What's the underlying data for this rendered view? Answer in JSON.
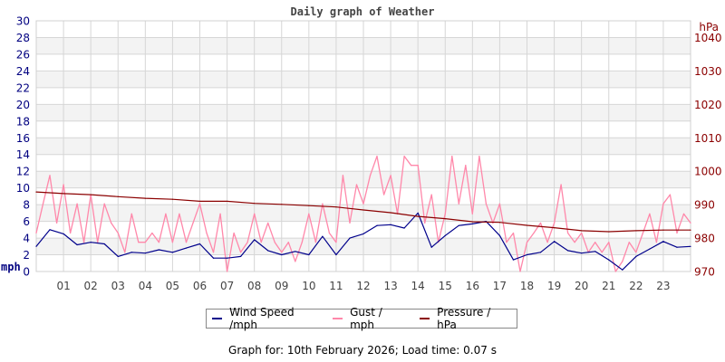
{
  "chart_data": {
    "type": "line",
    "title": "Daily graph of Weather",
    "xlabel": "",
    "ylabel": "mph",
    "y2label": "hPa",
    "xlim": [
      0,
      24
    ],
    "ylim": [
      0,
      30
    ],
    "y2lim": [
      970,
      1045
    ],
    "x_tick_labels": [
      "01",
      "02",
      "03",
      "04",
      "05",
      "06",
      "07",
      "08",
      "09",
      "10",
      "11",
      "12",
      "13",
      "14",
      "15",
      "16",
      "17",
      "18",
      "19",
      "20",
      "21",
      "22",
      "23"
    ],
    "y_tick_labels": [
      "0",
      "2",
      "4",
      "6",
      "8",
      "10",
      "12",
      "14",
      "16",
      "18",
      "20",
      "22",
      "24",
      "26",
      "28",
      "30"
    ],
    "y2_tick_labels": [
      "970",
      "980",
      "990",
      "1000",
      "1010",
      "1020",
      "1030",
      "1040"
    ],
    "grid": true,
    "legend_placement": "bottom",
    "series": [
      {
        "name": "Wind Speed /mph",
        "axis": "left",
        "color": "#00008b",
        "x_step_hours": 0.5,
        "values": [
          3.0,
          5.0,
          4.5,
          3.2,
          3.5,
          3.3,
          1.8,
          2.3,
          2.2,
          2.6,
          2.3,
          2.8,
          3.3,
          1.6,
          1.6,
          1.8,
          3.8,
          2.5,
          2.0,
          2.4,
          2.0,
          4.2,
          2.0,
          4.0,
          4.5,
          5.5,
          5.6,
          5.2,
          7.0,
          2.9,
          4.3,
          5.5,
          5.7,
          6.0,
          4.3,
          1.4,
          2.0,
          2.3,
          3.6,
          2.5,
          2.2,
          2.4,
          1.4,
          0.2,
          1.8,
          2.7,
          3.6,
          2.9,
          3.0
        ]
      },
      {
        "name": "Gust / mph",
        "axis": "left",
        "color": "#ff88aa",
        "x_step_hours": 0.25,
        "values": [
          4.6,
          8.1,
          11.5,
          5.8,
          10.4,
          4.6,
          8.1,
          3.5,
          9.2,
          3.5,
          8.1,
          5.8,
          4.6,
          2.3,
          6.9,
          3.5,
          3.5,
          4.6,
          3.5,
          6.9,
          3.5,
          6.9,
          3.5,
          5.8,
          8.1,
          4.6,
          2.3,
          6.9,
          0.0,
          4.6,
          2.3,
          3.5,
          6.9,
          3.5,
          5.8,
          3.5,
          2.3,
          3.5,
          1.2,
          3.5,
          6.9,
          3.5,
          8.1,
          4.6,
          3.5,
          11.5,
          5.8,
          10.4,
          8.1,
          11.5,
          13.8,
          9.2,
          11.5,
          6.9,
          13.8,
          12.7,
          12.7,
          5.8,
          9.2,
          3.5,
          6.9,
          13.8,
          8.1,
          12.7,
          6.9,
          13.8,
          8.1,
          5.8,
          8.1,
          3.5,
          4.6,
          0.0,
          3.5,
          4.6,
          5.8,
          3.5,
          5.8,
          10.4,
          4.6,
          3.5,
          4.6,
          2.3,
          3.5,
          2.3,
          3.5,
          0.0,
          1.2,
          3.5,
          2.3,
          4.6,
          6.9,
          3.5,
          8.1,
          9.2,
          4.6,
          6.9,
          5.8
        ]
      },
      {
        "name": "Pressure / hPa",
        "axis": "right",
        "color": "#8b0000",
        "x_step_hours": 1,
        "values": [
          993.8,
          993.3,
          993.0,
          992.4,
          991.9,
          991.6,
          991.0,
          991.0,
          990.4,
          990.1,
          989.7,
          989.3,
          988.4,
          987.6,
          986.5,
          985.8,
          984.9,
          984.7,
          983.8,
          983.1,
          982.2,
          981.9,
          982.2,
          982.4,
          982.4
        ]
      }
    ]
  },
  "footer": "Graph for: 10th February 2026; Load time: 0.07 s"
}
